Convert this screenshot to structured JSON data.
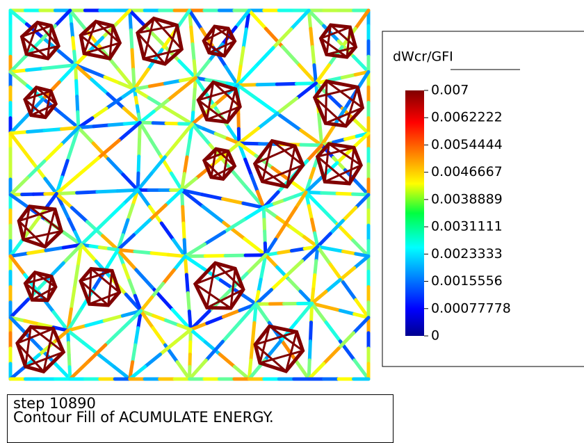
{
  "legend": {
    "title": "dWcr/GFI",
    "labels": [
      "0.007",
      "0.0062222",
      "0.0054444",
      "0.0046667",
      "0.0038889",
      "0.0031111",
      "0.0023333",
      "0.0015556",
      "0.00077778",
      "0"
    ]
  },
  "caption": {
    "lines": [
      "step 10890",
      "Contour Fill of ACUMULATE ENERGY."
    ]
  }
}
